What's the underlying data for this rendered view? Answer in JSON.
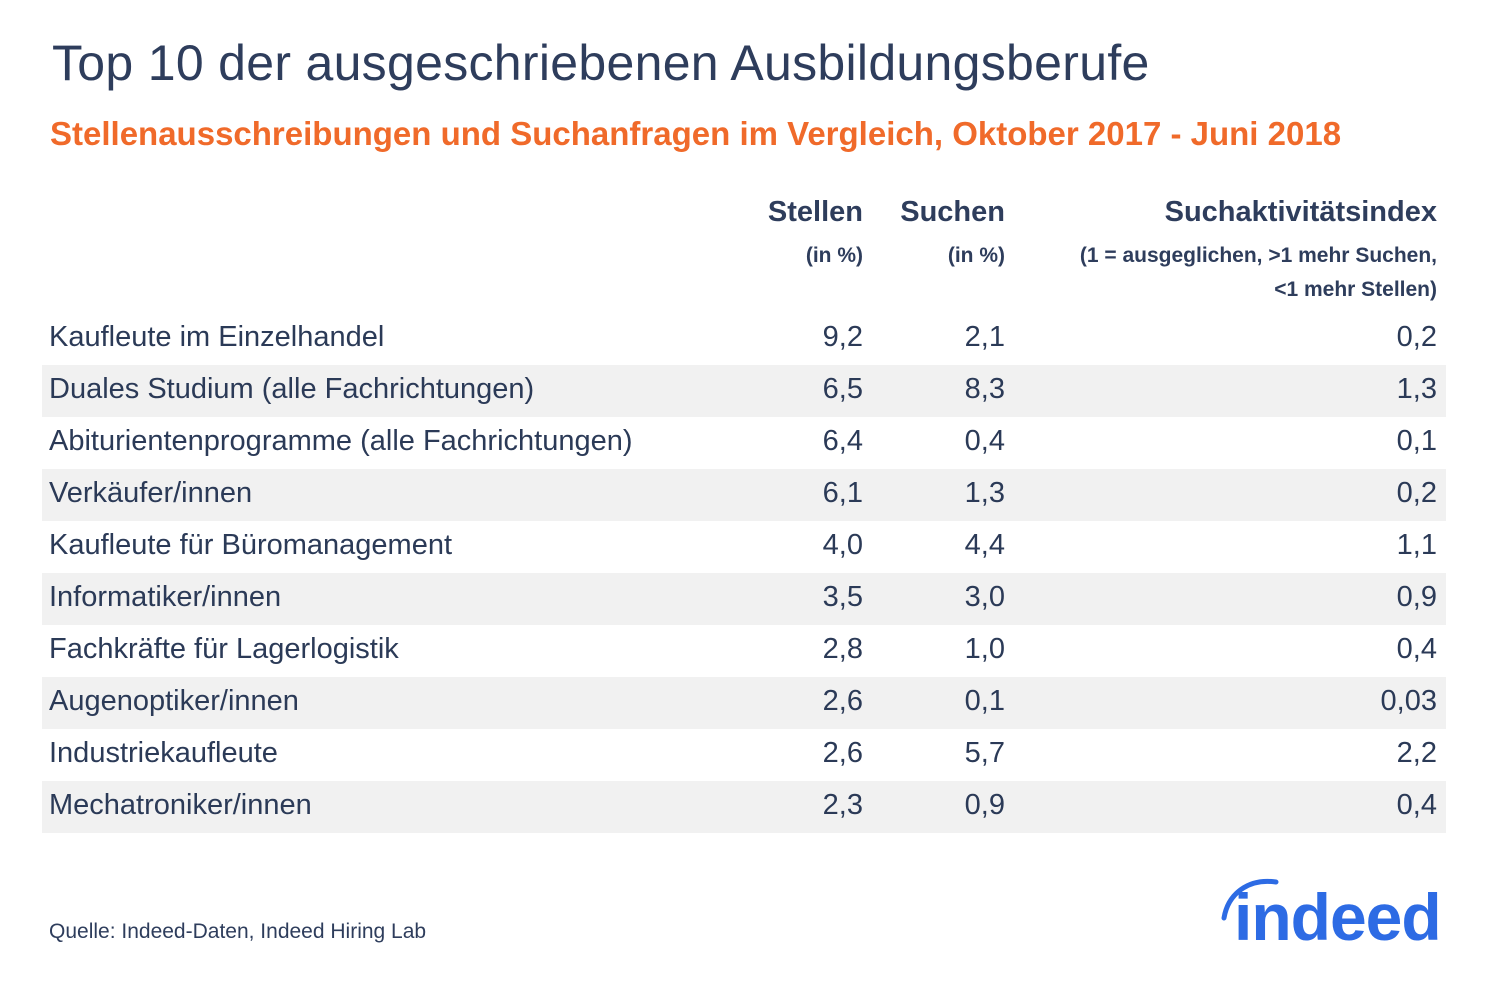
{
  "chart_data": {
    "type": "table",
    "title": "Top 10 der ausgeschriebenen Ausbildungsberufe",
    "subtitle": "Stellenausschreibungen und Suchanfragen im Vergleich, Oktober 2017 - Juni 2018",
    "columns": [
      {
        "label": "Stellen",
        "sub": "(in %)"
      },
      {
        "label": "Suchen",
        "sub": "(in %)"
      },
      {
        "label": "Suchaktivitätsindex",
        "sub": "(1 = ausgeglichen, >1 mehr Suchen,",
        "sub2": "<1 mehr Stellen)"
      }
    ],
    "rows": [
      {
        "name": "Kaufleute im Einzelhandel",
        "stellen": "9,2",
        "suchen": "2,1",
        "index": "0,2"
      },
      {
        "name": "Duales Studium (alle Fachrichtungen)",
        "stellen": "6,5",
        "suchen": "8,3",
        "index": "1,3"
      },
      {
        "name": "Abiturientenprogramme (alle Fachrichtungen)",
        "stellen": "6,4",
        "suchen": "0,4",
        "index": "0,1"
      },
      {
        "name": "Verkäufer/innen",
        "stellen": "6,1",
        "suchen": "1,3",
        "index": "0,2"
      },
      {
        "name": "Kaufleute für Büromanagement",
        "stellen": "4,0",
        "suchen": "4,4",
        "index": "1,1"
      },
      {
        "name": "Informatiker/innen",
        "stellen": "3,5",
        "suchen": "3,0",
        "index": "0,9"
      },
      {
        "name": "Fachkräfte für Lagerlogistik",
        "stellen": "2,8",
        "suchen": "1,0",
        "index": "0,4"
      },
      {
        "name": "Augenoptiker/innen",
        "stellen": "2,6",
        "suchen": "0,1",
        "index": "0,03"
      },
      {
        "name": "Industriekaufleute",
        "stellen": "2,6",
        "suchen": "5,7",
        "index": "2,2"
      },
      {
        "name": "Mechatroniker/innen",
        "stellen": "2,3",
        "suchen": "0,9",
        "index": "0,4"
      }
    ]
  },
  "source": "Quelle: Indeed-Daten, Indeed Hiring Lab",
  "logo": "indeed",
  "colors": {
    "title": "#2e3d5c",
    "subtitle": "#f06a2a",
    "stripe": "#f1f1f1",
    "logo": "#2d6be4"
  }
}
